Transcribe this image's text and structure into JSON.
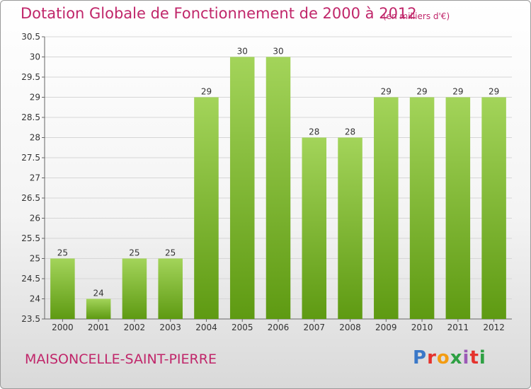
{
  "page": {
    "title": "Dotation Globale de Fonctionnement de 2000 à 2012",
    "subtitle": "(en milliers d'€)",
    "commune": "MAISONCELLE-SAINT-PIERRE",
    "logo": {
      "text": "Proxiti",
      "colors": [
        "#3a78c8",
        "#e5322d",
        "#f39c12",
        "#2ea043",
        "#9b59b6",
        "#e5322d",
        "#2ea043"
      ]
    }
  },
  "chart_data": {
    "type": "bar",
    "title": "Dotation Globale de Fonctionnement de 2000 à 2012",
    "subtitle": "(en milliers d'€)",
    "categories": [
      "2000",
      "2001",
      "2002",
      "2003",
      "2004",
      "2005",
      "2006",
      "2007",
      "2008",
      "2009",
      "2010",
      "2011",
      "2012"
    ],
    "values": [
      25,
      24,
      25,
      25,
      29,
      30,
      30,
      28,
      28,
      29,
      29,
      29,
      29
    ],
    "labels": [
      "25",
      "24",
      "25",
      "25",
      "29",
      "30",
      "30",
      "28",
      "28",
      "29",
      "29",
      "29",
      "29"
    ],
    "plot_values": [
      25,
      24,
      25,
      25,
      29,
      30,
      30,
      28,
      28,
      29,
      29,
      29,
      29
    ],
    "ylim": [
      23.5,
      30.5
    ],
    "yticks": [
      "23.5",
      "24",
      "24.5",
      "25",
      "25.5",
      "26",
      "26.5",
      "27",
      "27.5",
      "28",
      "28.5",
      "29",
      "29.5",
      "30",
      "30.5"
    ],
    "grid": true,
    "bar_color_top": "#a3d45a",
    "bar_color_bottom": "#5e9a12",
    "xlabel": "",
    "ylabel": ""
  }
}
